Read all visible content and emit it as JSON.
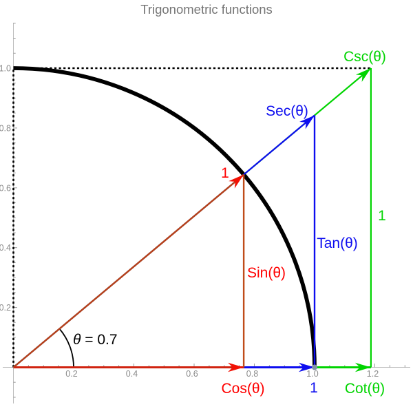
{
  "title": "Trigonometric functions",
  "colors": {
    "title_text": "#757575",
    "axis_gray": "#bcbcbc",
    "tick_text": "#8a8a8a",
    "black": "#000000",
    "red_label": "#ff0000",
    "red_line": "#b8401a",
    "red_cos_line": "#d02310",
    "red_arrowhead": "#f21105",
    "blue": "#0d0def",
    "green": "#00d400",
    "point_gray": "#8193a6"
  },
  "labels": {
    "cos": "Cos(θ)",
    "sin": "Sin(θ)",
    "tan": "Tan(θ)",
    "sec": "Sec(θ)",
    "csc": "Csc(θ)",
    "cot": "Cot(θ)",
    "one_radius": "1",
    "one_base": "1",
    "one_height": "1",
    "theta_symbol": "θ",
    "theta_value": " = 0.7"
  },
  "chart_data": {
    "type": "line",
    "title": "Trigonometric functions",
    "angle_label": "θ = 0.7",
    "theta_radians": 0.7,
    "values": {
      "cos": 0.7648,
      "sin": 0.6442,
      "tan": 0.8423,
      "cot": 1.1872,
      "sec": 1.3075,
      "csc": 1.5523
    },
    "xlim": [
      0,
      1.32
    ],
    "ylim": [
      0,
      1.16
    ],
    "grid": false,
    "x_ticks": [
      0.2,
      0.4,
      0.6,
      0.8,
      1.0,
      1.2
    ],
    "x_tick_labels": [
      "0.2",
      "0.4",
      "0.6",
      "0.8",
      "1.0",
      "1.2"
    ],
    "y_ticks": [
      0.2,
      0.4,
      0.6,
      0.8,
      1.0
    ],
    "y_tick_labels": [
      "0.2",
      "0.4",
      "0.6",
      "0.8",
      "1.0"
    ],
    "unit_circle": {
      "radius": 1,
      "from_deg": 0,
      "to_deg": 90
    },
    "angle_arc": {
      "radius_units": 0.2,
      "label": "θ = 0.7"
    },
    "dashed_guides": [
      {
        "name": "y-axis-dashed",
        "from": [
          0,
          0
        ],
        "to": [
          0,
          1
        ]
      },
      {
        "name": "top-dashed",
        "from": [
          0,
          1
        ],
        "to": [
          1.1872,
          1
        ]
      }
    ],
    "segments": [
      {
        "name": "cot-arrow",
        "label": "Cot(θ)",
        "from": [
          0,
          0
        ],
        "to": [
          1.1872,
          0
        ],
        "color": "#00d400",
        "arrow": true,
        "width": 3
      },
      {
        "name": "csc-height-line",
        "label": "1",
        "from": [
          1.1872,
          0
        ],
        "to": [
          1.1872,
          1
        ],
        "color": "#00d400",
        "arrow": false,
        "width": 2.2
      },
      {
        "name": "csc-arrow",
        "label": "Csc(θ)",
        "from": [
          0,
          0
        ],
        "to": [
          1.1872,
          1
        ],
        "color": "#00d400",
        "arrow": true,
        "width": 2.2
      },
      {
        "name": "unit-base-arrow",
        "label": "1",
        "from": [
          0,
          0
        ],
        "to": [
          1,
          0
        ],
        "color": "#0d0def",
        "arrow": true,
        "width": 3
      },
      {
        "name": "tan-line",
        "label": "Tan(θ)",
        "from": [
          1,
          0
        ],
        "to": [
          1,
          0.8423
        ],
        "color": "#0d0def",
        "arrow": false,
        "width": 2.4
      },
      {
        "name": "sec-arrow",
        "label": "Sec(θ)",
        "from": [
          0,
          0
        ],
        "to": [
          1,
          0.8423
        ],
        "color": "#0d0def",
        "arrow": true,
        "width": 2.2
      },
      {
        "name": "cos-arrow",
        "label": "Cos(θ)",
        "from": [
          0,
          0
        ],
        "to": [
          0.7648,
          0
        ],
        "color": "#d02310",
        "arrow": true,
        "width": 3,
        "head_color": "#f21105"
      },
      {
        "name": "sin-line",
        "label": "Sin(θ)",
        "from": [
          0.7648,
          0
        ],
        "to": [
          0.7648,
          0.6442
        ],
        "color": "#c04c1a",
        "arrow": false,
        "width": 2.4
      },
      {
        "name": "radius-arrow",
        "label": "1",
        "from": [
          0,
          0
        ],
        "to": [
          0.7648,
          0.6442
        ],
        "color": "#b8401a",
        "arrow": true,
        "width": 2.4,
        "head_color": "#f21105"
      }
    ],
    "marked_points": [
      {
        "name": "point-1-0",
        "at": [
          1,
          0
        ]
      }
    ]
  }
}
